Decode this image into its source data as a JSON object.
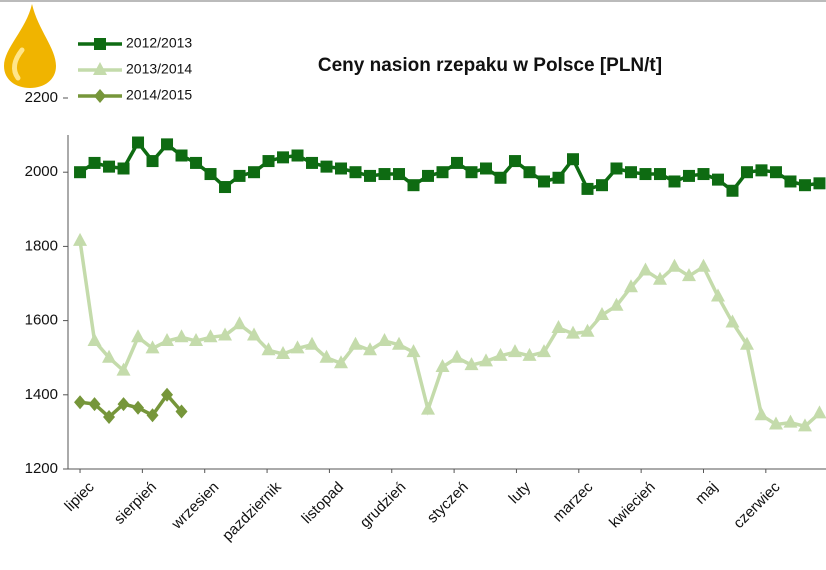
{
  "chart_data": {
    "type": "line",
    "title": "Ceny nasion rzepaku w Polsce [PLN/t]",
    "x": [
      0,
      1,
      2,
      3,
      4,
      5,
      6,
      7,
      8,
      9,
      10,
      11,
      12,
      13,
      14,
      15,
      16,
      17,
      18,
      19,
      20,
      21,
      22,
      23,
      24,
      25,
      26,
      27,
      28,
      29,
      30,
      31,
      32,
      33,
      34,
      35,
      36,
      37,
      38,
      39,
      40,
      41,
      42,
      43,
      44,
      45,
      46,
      47,
      48,
      49,
      50,
      51
    ],
    "xlim": [
      -0.83,
      51.45
    ],
    "xticks": [
      {
        "value": 0,
        "label": "lipiec"
      },
      {
        "value": 4.3,
        "label": "sierpień"
      },
      {
        "value": 8.6,
        "label": "wrzesien"
      },
      {
        "value": 12.9,
        "label": "pazdziernik"
      },
      {
        "value": 17.2,
        "label": "listopad"
      },
      {
        "value": 21.5,
        "label": "grudzień"
      },
      {
        "value": 25.8,
        "label": "styczeń"
      },
      {
        "value": 30.1,
        "label": "luty"
      },
      {
        "value": 34.4,
        "label": "marzec"
      },
      {
        "value": 38.7,
        "label": "kwiecień"
      },
      {
        "value": 43,
        "label": "maj"
      },
      {
        "value": 47.3,
        "label": "czerwiec"
      }
    ],
    "ylim": [
      1200,
      2200
    ],
    "yticks": [
      1200,
      1400,
      1600,
      1800,
      2000,
      2200
    ],
    "grid": false,
    "legend": "top-left",
    "series": [
      {
        "name": "2012/2013",
        "color": "#0e6b12",
        "marker": "square",
        "values": [
          2000,
          2025,
          2015,
          2010,
          2080,
          2030,
          2075,
          2045,
          2025,
          1995,
          1960,
          1990,
          2000,
          2030,
          2040,
          2045,
          2025,
          2015,
          2010,
          2000,
          1990,
          1995,
          1995,
          1965,
          1990,
          2000,
          2025,
          2000,
          2010,
          1985,
          2030,
          2000,
          1975,
          1985,
          2035,
          1955,
          1965,
          2010,
          2000,
          1995,
          1995,
          1975,
          1990,
          1995,
          1980,
          1950,
          2000,
          2005,
          2000,
          1975,
          1965,
          1970
        ]
      },
      {
        "name": "2013/2014",
        "color": "#c4dbab",
        "marker": "triangle",
        "values": [
          1815,
          1545,
          1500,
          1465,
          1555,
          1525,
          1545,
          1555,
          1545,
          1555,
          1560,
          1590,
          1560,
          1520,
          1510,
          1525,
          1535,
          1500,
          1485,
          1535,
          1520,
          1545,
          1535,
          1515,
          1360,
          1475,
          1500,
          1480,
          1490,
          1505,
          1515,
          1505,
          1515,
          1580,
          1565,
          1570,
          1615,
          1640,
          1690,
          1735,
          1710,
          1745,
          1720,
          1745,
          1665,
          1595,
          1535,
          1345,
          1320,
          1325,
          1315,
          1350
        ]
      },
      {
        "name": "2014/2015",
        "color": "#76963a",
        "marker": "diamond",
        "values": [
          1380,
          1375,
          1340,
          1375,
          1365,
          1345,
          1400,
          1355,
          null,
          null,
          null,
          null,
          null,
          null,
          null,
          null,
          null,
          null,
          null,
          null,
          null,
          null,
          null,
          null,
          null,
          null,
          null,
          null,
          null,
          null,
          null,
          null,
          null,
          null,
          null,
          null,
          null,
          null,
          null,
          null,
          null,
          null,
          null,
          null,
          null,
          null,
          null,
          null,
          null,
          null,
          null,
          null
        ]
      }
    ]
  }
}
